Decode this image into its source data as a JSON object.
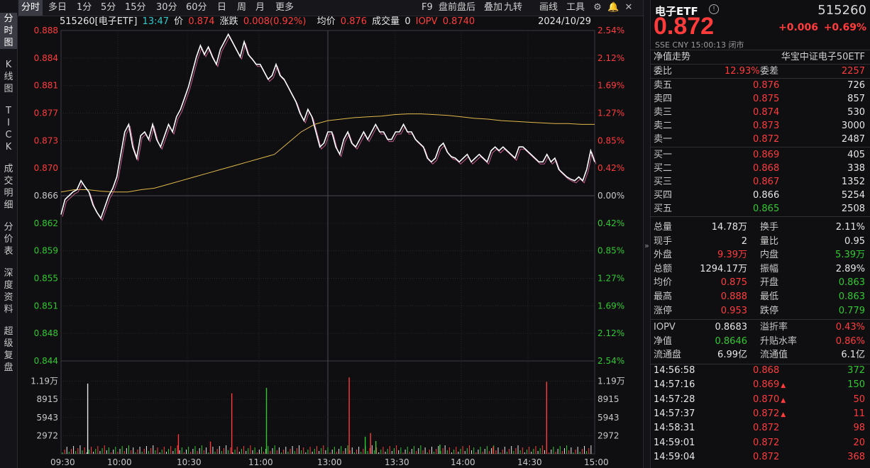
{
  "left_tabs": [
    "分时图",
    "K线图",
    "TICK",
    "成交明细",
    "分价表",
    "深度资料",
    "超级复盘"
  ],
  "toolbar": {
    "periods": [
      "分时",
      "多日",
      "1分",
      "5分",
      "15分",
      "30分",
      "60分",
      "日",
      "周",
      "月",
      "更多"
    ],
    "actions": [
      "F9",
      "盘前盘后",
      "叠加",
      "九转",
      "画线",
      "工具"
    ],
    "icons": [
      "gear-icon",
      "bell-icon",
      "close-icon"
    ]
  },
  "info": {
    "code_name": "515260[电子ETF]",
    "time": "13:47",
    "price_label": "价",
    "price": "0.874",
    "change_label": "涨跌",
    "change": "0.008(0.92%)",
    "avg_label": "均价",
    "avg": "0.876",
    "volume_label": "成交量",
    "volume": "0",
    "iopv_label": "IOPV",
    "iopv": "0.8740",
    "date": "2024/10/29"
  },
  "chart_data": {
    "type": "line",
    "prev_close": 0.866,
    "ylim": [
      0.844,
      0.888
    ],
    "price_ticks_left": [
      "0.888",
      "0.884",
      "0.881",
      "0.877",
      "0.873",
      "0.870",
      "0.866",
      "0.862",
      "0.859",
      "0.855",
      "0.851",
      "0.848",
      "0.844"
    ],
    "pct_ticks_right": [
      "2.54%",
      "2.12%",
      "1.69%",
      "1.27%",
      "0.85%",
      "0.42%",
      "0.00%",
      "0.42%",
      "0.85%",
      "1.27%",
      "1.69%",
      "2.12%",
      "2.54%"
    ],
    "volume_ticks": [
      "1.19万",
      "8915",
      "5943",
      "2972"
    ],
    "x_ticks": [
      "09:30",
      "10:00",
      "10:30",
      "11:00",
      "13:00",
      "13:30",
      "14:00",
      "14:30",
      "15:00"
    ],
    "price_series": [
      0.8635,
      0.8655,
      0.866,
      0.8665,
      0.8668,
      0.868,
      0.8672,
      0.8665,
      0.8648,
      0.8638,
      0.863,
      0.8645,
      0.866,
      0.867,
      0.8685,
      0.8715,
      0.8745,
      0.8755,
      0.8725,
      0.871,
      0.874,
      0.8745,
      0.8735,
      0.8755,
      0.8735,
      0.8725,
      0.874,
      0.8755,
      0.8745,
      0.8765,
      0.8775,
      0.879,
      0.8805,
      0.8825,
      0.8845,
      0.886,
      0.8848,
      0.8858,
      0.8845,
      0.8835,
      0.8855,
      0.8865,
      0.8875,
      0.8865,
      0.8855,
      0.8845,
      0.8865,
      0.8848,
      0.8842,
      0.8835,
      0.8835,
      0.8825,
      0.8815,
      0.882,
      0.8835,
      0.882,
      0.8815,
      0.8805,
      0.8795,
      0.8785,
      0.877,
      0.876,
      0.8775,
      0.8765,
      0.8745,
      0.8725,
      0.873,
      0.8745,
      0.8745,
      0.8725,
      0.8715,
      0.8735,
      0.8745,
      0.873,
      0.8725,
      0.8735,
      0.8745,
      0.8735,
      0.8745,
      0.8755,
      0.8745,
      0.8745,
      0.8735,
      0.8735,
      0.8745,
      0.8745,
      0.8755,
      0.8745,
      0.8745,
      0.8735,
      0.873,
      0.8725,
      0.871,
      0.8705,
      0.871,
      0.8725,
      0.873,
      0.8718,
      0.8712,
      0.871,
      0.8705,
      0.871,
      0.8715,
      0.8705,
      0.871,
      0.8715,
      0.871,
      0.8705,
      0.872,
      0.8725,
      0.872,
      0.8725,
      0.872,
      0.8715,
      0.871,
      0.8725,
      0.8725,
      0.872,
      0.8715,
      0.871,
      0.8705,
      0.8705,
      0.8715,
      0.8705,
      0.871,
      0.8695,
      0.869,
      0.8685,
      0.8682,
      0.868,
      0.8685,
      0.868,
      0.8695,
      0.872,
      0.8705
    ],
    "avg_series": [
      0.8665,
      0.8668,
      0.8668,
      0.8666,
      0.8665,
      0.8665,
      0.8668,
      0.867,
      0.8675,
      0.868,
      0.8685,
      0.869,
      0.8695,
      0.87,
      0.8705,
      0.871,
      0.8715,
      0.873,
      0.8745,
      0.8755,
      0.876,
      0.8762,
      0.8764,
      0.8765,
      0.8766,
      0.8768,
      0.8769,
      0.8769,
      0.8768,
      0.8767,
      0.8765,
      0.8763,
      0.8762,
      0.876,
      0.8759,
      0.8758,
      0.8757,
      0.8756,
      0.8756,
      0.8755,
      0.8755
    ],
    "volume_bars": [
      {
        "x": 0.05,
        "v": 11500,
        "c": "white"
      },
      {
        "x": 0.32,
        "v": 9900,
        "c": "red"
      },
      {
        "x": 0.385,
        "v": 10800,
        "c": "green"
      },
      {
        "x": 0.54,
        "v": 12500,
        "c": "red"
      },
      {
        "x": 0.91,
        "v": 11800,
        "c": "red"
      },
      {
        "x": 0.22,
        "v": 3200,
        "c": "red"
      },
      {
        "x": 0.58,
        "v": 3400,
        "c": "red"
      },
      {
        "x": 0.57,
        "v": 2800,
        "c": "green"
      },
      {
        "x": 0.59,
        "v": 2100,
        "c": "green"
      },
      {
        "x": 0.28,
        "v": 2000,
        "c": "red"
      },
      {
        "x": 0.71,
        "v": 1500,
        "c": "green"
      },
      {
        "x": 0.81,
        "v": 1200,
        "c": "red"
      }
    ]
  },
  "quote": {
    "name": "电子ETF",
    "code": "515260",
    "price": "0.872",
    "change": "+0.006",
    "change_pct": "+0.69%",
    "exchange": "SSE",
    "currency": "CNY",
    "time": "15:00:13",
    "status": "闭市",
    "nav_trend": "净值走势",
    "index_name": "华宝中证电子50ETF",
    "ratio_label": "委比",
    "ratio": "12.93%",
    "diff_label": "委差",
    "diff": "2257",
    "sells": [
      {
        "name": "卖五",
        "price": "0.876",
        "vol": "726"
      },
      {
        "name": "卖四",
        "price": "0.875",
        "vol": "857"
      },
      {
        "name": "卖三",
        "price": "0.874",
        "vol": "530"
      },
      {
        "name": "卖二",
        "price": "0.873",
        "vol": "3000"
      },
      {
        "name": "卖一",
        "price": "0.872",
        "vol": "2487"
      }
    ],
    "buys": [
      {
        "name": "买一",
        "price": "0.869",
        "vol": "405"
      },
      {
        "name": "买二",
        "price": "0.868",
        "vol": "338"
      },
      {
        "name": "买三",
        "price": "0.867",
        "vol": "1352"
      },
      {
        "name": "买四",
        "price": "0.866",
        "vol": "5254"
      },
      {
        "name": "买五",
        "price": "0.865",
        "vol": "2508"
      }
    ],
    "stats": [
      {
        "l1": "总量",
        "v1": "14.78万",
        "c1": "white",
        "l2": "换手",
        "v2": "2.11%",
        "c2": "white"
      },
      {
        "l1": "现手",
        "v1": "2",
        "c1": "white",
        "l2": "量比",
        "v2": "0.95",
        "c2": "white"
      },
      {
        "l1": "外盘",
        "v1": "9.39万",
        "c1": "red",
        "l2": "内盘",
        "v2": "5.39万",
        "c2": "green"
      },
      {
        "l1": "总额",
        "v1": "1294.17万",
        "c1": "white",
        "l2": "振幅",
        "v2": "2.89%",
        "c2": "white"
      },
      {
        "l1": "均价",
        "v1": "0.875",
        "c1": "red",
        "l2": "开盘",
        "v2": "0.863",
        "c2": "green"
      },
      {
        "l1": "最高",
        "v1": "0.888",
        "c1": "red",
        "l2": "最低",
        "v2": "0.863",
        "c2": "green"
      },
      {
        "l1": "涨停",
        "v1": "0.953",
        "c1": "red",
        "l2": "跌停",
        "v2": "0.779",
        "c2": "green"
      }
    ],
    "stats2": [
      {
        "l1": "IOPV",
        "v1": "0.8683",
        "c1": "white",
        "l2": "溢折率",
        "v2": "0.43%",
        "c2": "red"
      },
      {
        "l1": "净值",
        "v1": "0.8646",
        "c1": "green",
        "l2": "升贴水率",
        "v2": "0.86%",
        "c2": "red"
      },
      {
        "l1": "流通盘",
        "v1": "6.99亿",
        "c1": "white",
        "l2": "流通值",
        "v2": "6.1亿",
        "c2": "white"
      }
    ],
    "ticks": [
      {
        "time": "14:56:58",
        "price": "0.868",
        "vol": "372",
        "pc": "red",
        "vc": "green",
        "arrow": ""
      },
      {
        "time": "14:57:16",
        "price": "0.869",
        "vol": "150",
        "pc": "red",
        "vc": "green",
        "arrow": "up"
      },
      {
        "time": "14:57:28",
        "price": "0.870",
        "vol": "50",
        "pc": "red",
        "vc": "red",
        "arrow": "up"
      },
      {
        "time": "14:57:37",
        "price": "0.872",
        "vol": "11",
        "pc": "red",
        "vc": "red",
        "arrow": "up"
      },
      {
        "time": "14:58:31",
        "price": "0.872",
        "vol": "98",
        "pc": "red",
        "vc": "red",
        "arrow": ""
      },
      {
        "time": "14:59:01",
        "price": "0.872",
        "vol": "20",
        "pc": "red",
        "vc": "red",
        "arrow": ""
      },
      {
        "time": "14:59:04",
        "price": "0.872",
        "vol": "368",
        "pc": "red",
        "vc": "red",
        "arrow": ""
      }
    ]
  }
}
